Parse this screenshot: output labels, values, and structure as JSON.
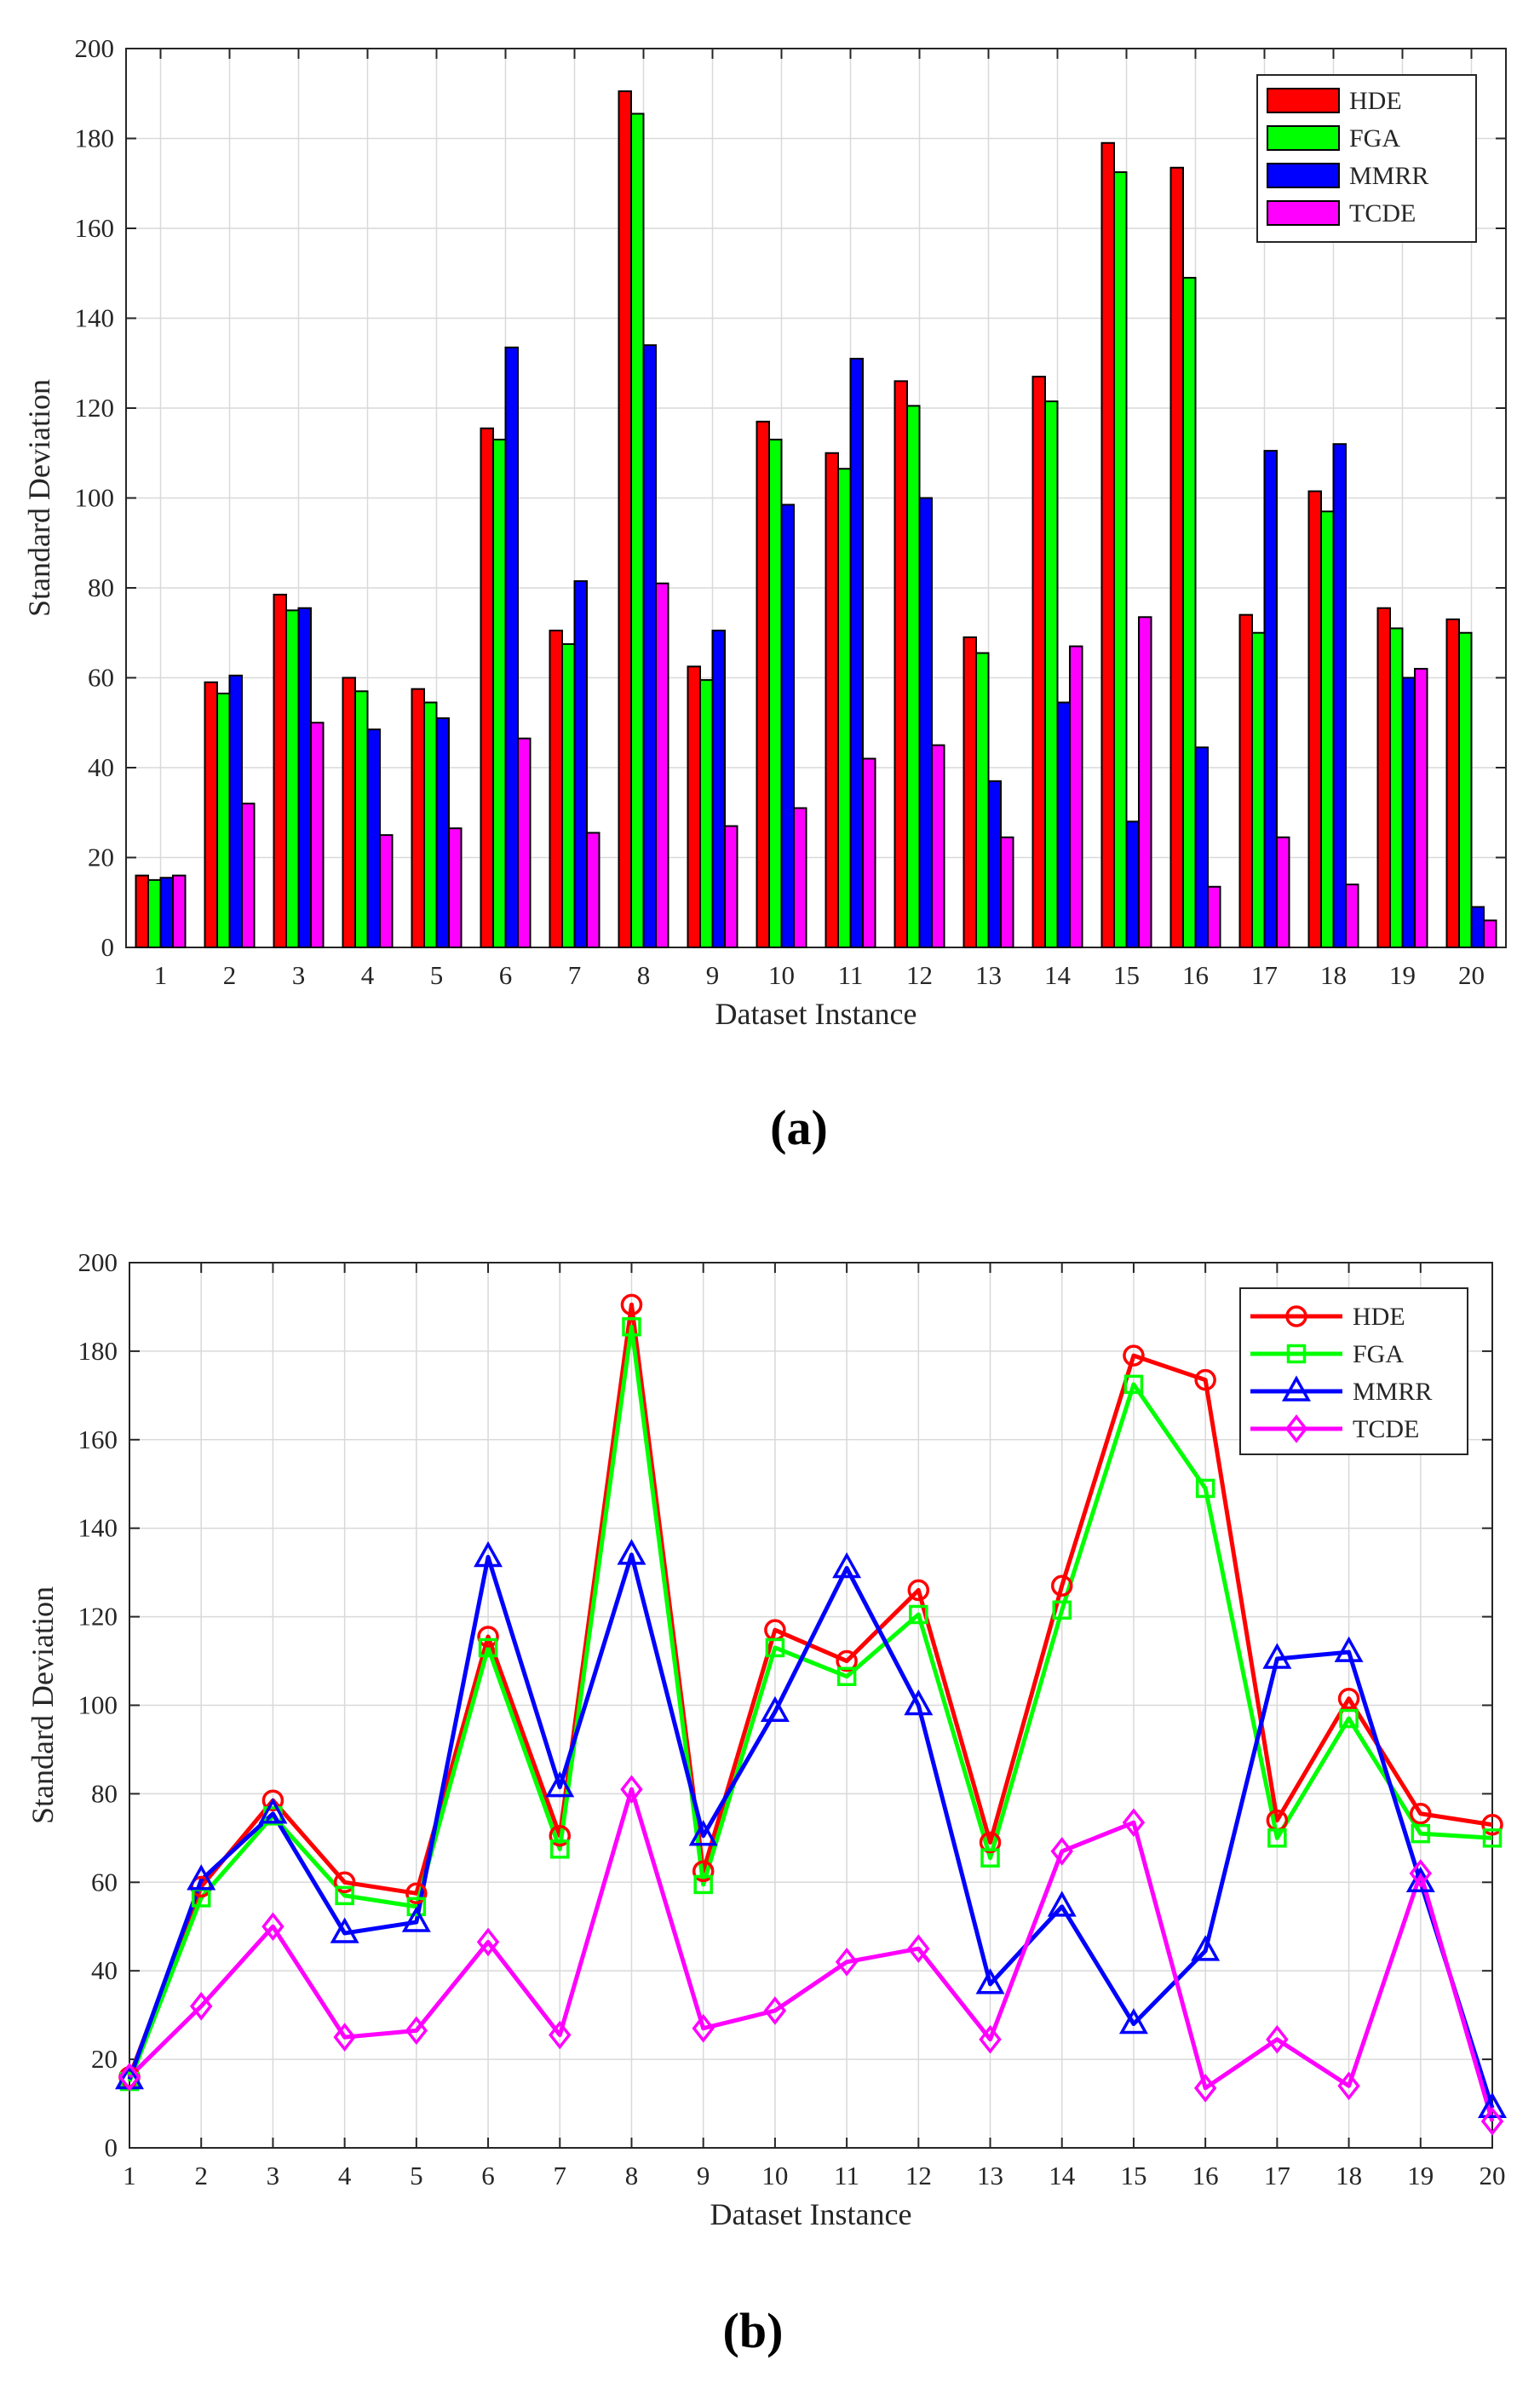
{
  "chart_data": [
    {
      "type": "bar",
      "panel_label": "(a)",
      "xlabel": "Dataset Instance",
      "ylabel": "Standard Deviation",
      "ylim": [
        0,
        200
      ],
      "yticks": [
        0,
        20,
        40,
        60,
        80,
        100,
        120,
        140,
        160,
        180,
        200
      ],
      "categories": [
        "1",
        "2",
        "3",
        "4",
        "5",
        "6",
        "7",
        "8",
        "9",
        "10",
        "11",
        "12",
        "13",
        "14",
        "15",
        "16",
        "17",
        "18",
        "19",
        "20"
      ],
      "grid": true,
      "legend_position": "top-right",
      "series": [
        {
          "name": "HDE",
          "color": "#ff0000",
          "values": [
            16,
            59,
            78.5,
            60,
            57.5,
            115.5,
            70.5,
            190.5,
            62.5,
            117,
            110,
            126,
            69,
            127,
            179,
            173.5,
            74,
            101.5,
            75.5,
            73
          ]
        },
        {
          "name": "FGA",
          "color": "#00ff00",
          "values": [
            15,
            56.5,
            75,
            57,
            54.5,
            113,
            67.5,
            185.5,
            59.5,
            113,
            106.5,
            120.5,
            65.5,
            121.5,
            172.5,
            149,
            70,
            97,
            71,
            70
          ]
        },
        {
          "name": "MMRR",
          "color": "#0000ff",
          "values": [
            15.5,
            60.5,
            75.5,
            48.5,
            51,
            133.5,
            81.5,
            134,
            70.5,
            98.5,
            131,
            100,
            37,
            54.5,
            28,
            44.5,
            110.5,
            112,
            60,
            9
          ]
        },
        {
          "name": "TCDE",
          "color": "#ff00ff",
          "values": [
            16,
            32,
            50,
            25,
            26.5,
            46.5,
            25.5,
            81,
            27,
            31,
            42,
            45,
            24.5,
            67,
            73.5,
            13.5,
            24.5,
            14,
            62,
            6
          ]
        }
      ]
    },
    {
      "type": "line",
      "panel_label": "(b)",
      "xlabel": "Dataset Instance",
      "ylabel": "Standard Deviation",
      "ylim": [
        0,
        200
      ],
      "yticks": [
        0,
        20,
        40,
        60,
        80,
        100,
        120,
        140,
        160,
        180,
        200
      ],
      "x": [
        1,
        2,
        3,
        4,
        5,
        6,
        7,
        8,
        9,
        10,
        11,
        12,
        13,
        14,
        15,
        16,
        17,
        18,
        19,
        20
      ],
      "grid": true,
      "legend_position": "top-right",
      "series": [
        {
          "name": "HDE",
          "color": "#ff0000",
          "marker": "circle",
          "values": [
            16,
            59,
            78.5,
            60,
            57.5,
            115.5,
            70.5,
            190.5,
            62.5,
            117,
            110,
            126,
            69,
            127,
            179,
            173.5,
            74,
            101.5,
            75.5,
            73
          ]
        },
        {
          "name": "FGA",
          "color": "#00ff00",
          "marker": "square",
          "values": [
            15,
            56.5,
            75,
            57,
            54.5,
            113,
            67.5,
            185.5,
            59.5,
            113,
            106.5,
            120.5,
            65.5,
            121.5,
            172.5,
            149,
            70,
            97,
            71,
            70
          ]
        },
        {
          "name": "MMRR",
          "color": "#0000ff",
          "marker": "triangle",
          "values": [
            15.5,
            60.5,
            75.5,
            48.5,
            51,
            133.5,
            81.5,
            134,
            70.5,
            98.5,
            131,
            100,
            37,
            54.5,
            28,
            44.5,
            110.5,
            112,
            60,
            9
          ]
        },
        {
          "name": "TCDE",
          "color": "#ff00ff",
          "marker": "diamond",
          "values": [
            16,
            32,
            50,
            25,
            26.5,
            46.5,
            25.5,
            81,
            27,
            31,
            42,
            45,
            24.5,
            67,
            73.5,
            13.5,
            24.5,
            14,
            62,
            6
          ]
        }
      ]
    }
  ]
}
